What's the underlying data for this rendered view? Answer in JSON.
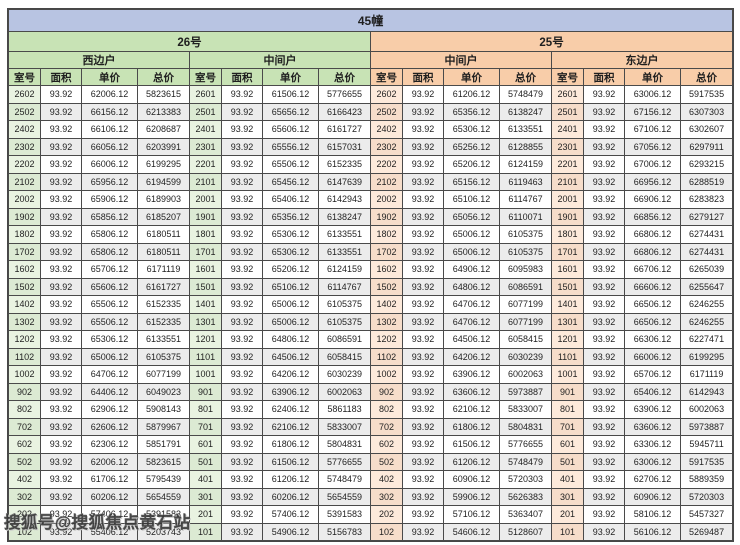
{
  "title": "45幢",
  "buildings": [
    {
      "label": "26号"
    },
    {
      "label": "25号"
    }
  ],
  "sides": [
    "西边户",
    "中间户",
    "中间户",
    "东边户"
  ],
  "col_headers": [
    "室号",
    "面积",
    "单价",
    "总价"
  ],
  "watermark": "搜狐号@搜狐焦点黄石站",
  "colors": {
    "title_bg": "#b8c4e2",
    "green_header": "#c8e3b5",
    "peach_header": "#f8cda9",
    "room_green": "#e9f3e1",
    "room_peach": "#fdeadb",
    "stripe": "#ececec",
    "border": "#4a4a4a"
  },
  "rows": [
    [
      "2602",
      "93.92",
      "62006.12",
      "5823615",
      "2601",
      "93.92",
      "61506.12",
      "5776655",
      "2602",
      "93.92",
      "61206.12",
      "5748479",
      "2601",
      "93.92",
      "63006.12",
      "5917535"
    ],
    [
      "2502",
      "93.92",
      "66156.12",
      "6213383",
      "2501",
      "93.92",
      "65656.12",
      "6166423",
      "2502",
      "93.92",
      "65356.12",
      "6138247",
      "2501",
      "93.92",
      "67156.12",
      "6307303"
    ],
    [
      "2402",
      "93.92",
      "66106.12",
      "6208687",
      "2401",
      "93.92",
      "65606.12",
      "6161727",
      "2402",
      "93.92",
      "65306.12",
      "6133551",
      "2401",
      "93.92",
      "67106.12",
      "6302607"
    ],
    [
      "2302",
      "93.92",
      "66056.12",
      "6203991",
      "2301",
      "93.92",
      "65556.12",
      "6157031",
      "2302",
      "93.92",
      "65256.12",
      "6128855",
      "2301",
      "93.92",
      "67056.12",
      "6297911"
    ],
    [
      "2202",
      "93.92",
      "66006.12",
      "6199295",
      "2201",
      "93.92",
      "65506.12",
      "6152335",
      "2202",
      "93.92",
      "65206.12",
      "6124159",
      "2201",
      "93.92",
      "67006.12",
      "6293215"
    ],
    [
      "2102",
      "93.92",
      "65956.12",
      "6194599",
      "2101",
      "93.92",
      "65456.12",
      "6147639",
      "2102",
      "93.92",
      "65156.12",
      "6119463",
      "2101",
      "93.92",
      "66956.12",
      "6288519"
    ],
    [
      "2002",
      "93.92",
      "65906.12",
      "6189903",
      "2001",
      "93.92",
      "65406.12",
      "6142943",
      "2002",
      "93.92",
      "65106.12",
      "6114767",
      "2001",
      "93.92",
      "66906.12",
      "6283823"
    ],
    [
      "1902",
      "93.92",
      "65856.12",
      "6185207",
      "1901",
      "93.92",
      "65356.12",
      "6138247",
      "1902",
      "93.92",
      "65056.12",
      "6110071",
      "1901",
      "93.92",
      "66856.12",
      "6279127"
    ],
    [
      "1802",
      "93.92",
      "65806.12",
      "6180511",
      "1801",
      "93.92",
      "65306.12",
      "6133551",
      "1802",
      "93.92",
      "65006.12",
      "6105375",
      "1801",
      "93.92",
      "66806.12",
      "6274431"
    ],
    [
      "1702",
      "93.92",
      "65806.12",
      "6180511",
      "1701",
      "93.92",
      "65306.12",
      "6133551",
      "1702",
      "93.92",
      "65006.12",
      "6105375",
      "1701",
      "93.92",
      "66806.12",
      "6274431"
    ],
    [
      "1602",
      "93.92",
      "65706.12",
      "6171119",
      "1601",
      "93.92",
      "65206.12",
      "6124159",
      "1602",
      "93.92",
      "64906.12",
      "6095983",
      "1601",
      "93.92",
      "66706.12",
      "6265039"
    ],
    [
      "1502",
      "93.92",
      "65606.12",
      "6161727",
      "1501",
      "93.92",
      "65106.12",
      "6114767",
      "1502",
      "93.92",
      "64806.12",
      "6086591",
      "1501",
      "93.92",
      "66606.12",
      "6255647"
    ],
    [
      "1402",
      "93.92",
      "65506.12",
      "6152335",
      "1401",
      "93.92",
      "65006.12",
      "6105375",
      "1402",
      "93.92",
      "64706.12",
      "6077199",
      "1401",
      "93.92",
      "66506.12",
      "6246255"
    ],
    [
      "1302",
      "93.92",
      "65506.12",
      "6152335",
      "1301",
      "93.92",
      "65006.12",
      "6105375",
      "1302",
      "93.92",
      "64706.12",
      "6077199",
      "1301",
      "93.92",
      "66506.12",
      "6246255"
    ],
    [
      "1202",
      "93.92",
      "65306.12",
      "6133551",
      "1201",
      "93.92",
      "64806.12",
      "6086591",
      "1202",
      "93.92",
      "64506.12",
      "6058415",
      "1201",
      "93.92",
      "66306.12",
      "6227471"
    ],
    [
      "1102",
      "93.92",
      "65006.12",
      "6105375",
      "1101",
      "93.92",
      "64506.12",
      "6058415",
      "1102",
      "93.92",
      "64206.12",
      "6030239",
      "1101",
      "93.92",
      "66006.12",
      "6199295"
    ],
    [
      "1002",
      "93.92",
      "64706.12",
      "6077199",
      "1001",
      "93.92",
      "64206.12",
      "6030239",
      "1002",
      "93.92",
      "63906.12",
      "6002063",
      "1001",
      "93.92",
      "65706.12",
      "6171119"
    ],
    [
      "902",
      "93.92",
      "64406.12",
      "6049023",
      "901",
      "93.92",
      "63906.12",
      "6002063",
      "902",
      "93.92",
      "63606.12",
      "5973887",
      "901",
      "93.92",
      "65406.12",
      "6142943"
    ],
    [
      "802",
      "93.92",
      "62906.12",
      "5908143",
      "801",
      "93.92",
      "62406.12",
      "5861183",
      "802",
      "93.92",
      "62106.12",
      "5833007",
      "801",
      "93.92",
      "63906.12",
      "6002063"
    ],
    [
      "702",
      "93.92",
      "62606.12",
      "5879967",
      "701",
      "93.92",
      "62106.12",
      "5833007",
      "702",
      "93.92",
      "61806.12",
      "5804831",
      "701",
      "93.92",
      "63606.12",
      "5973887"
    ],
    [
      "602",
      "93.92",
      "62306.12",
      "5851791",
      "601",
      "93.92",
      "61806.12",
      "5804831",
      "602",
      "93.92",
      "61506.12",
      "5776655",
      "601",
      "93.92",
      "63306.12",
      "5945711"
    ],
    [
      "502",
      "93.92",
      "62006.12",
      "5823615",
      "501",
      "93.92",
      "61506.12",
      "5776655",
      "502",
      "93.92",
      "61206.12",
      "5748479",
      "501",
      "93.92",
      "63006.12",
      "5917535"
    ],
    [
      "402",
      "93.92",
      "61706.12",
      "5795439",
      "401",
      "93.92",
      "61206.12",
      "5748479",
      "402",
      "93.92",
      "60906.12",
      "5720303",
      "401",
      "93.92",
      "62706.12",
      "5889359"
    ],
    [
      "302",
      "93.92",
      "60206.12",
      "5654559",
      "301",
      "93.92",
      "60206.12",
      "5654559",
      "302",
      "93.92",
      "59906.12",
      "5626383",
      "301",
      "93.92",
      "60906.12",
      "5720303"
    ],
    [
      "202",
      "93.92",
      "57406.12",
      "5391583",
      "201",
      "93.92",
      "57406.12",
      "5391583",
      "202",
      "93.92",
      "57106.12",
      "5363407",
      "201",
      "93.92",
      "58106.12",
      "5457327"
    ],
    [
      "102",
      "93.92",
      "55406.12",
      "5203743",
      "101",
      "93.92",
      "54906.12",
      "5156783",
      "102",
      "93.92",
      "54606.12",
      "5128607",
      "101",
      "93.92",
      "56106.12",
      "5269487"
    ]
  ]
}
